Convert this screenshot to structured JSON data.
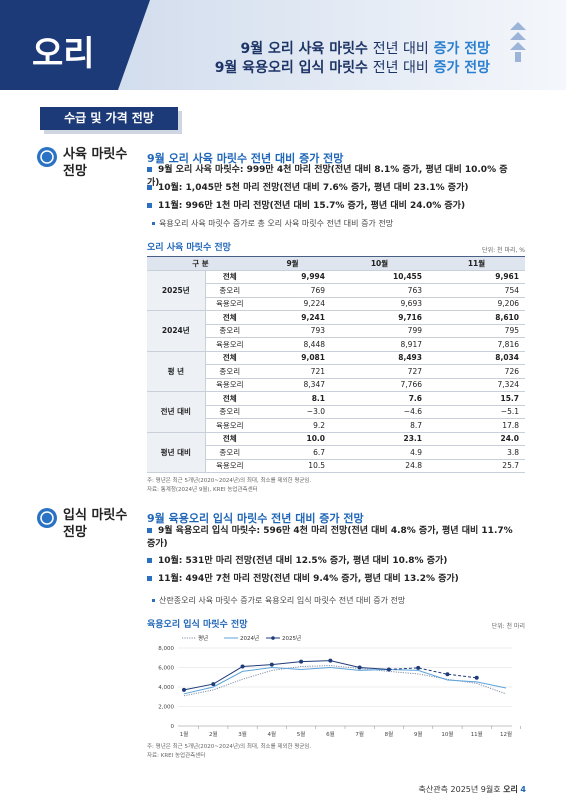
{
  "header": {
    "title": "오리",
    "lines": [
      {
        "main": "9월 오리 사육 마릿수",
        "mid": "전년 대비",
        "highlight": "증가 전망"
      },
      {
        "main": "9월 육용오리 입식 마릿수",
        "mid": "전년 대비",
        "highlight": "증가 전망"
      }
    ]
  },
  "section_title": "수급 및 가격 전망",
  "section1": {
    "label": [
      "사육 마릿수",
      "전망"
    ],
    "heading": "9월 오리 사육 마릿수 전년 대비 증가 전망",
    "bullets": [
      "9월 오리 사육 마릿수: 999만 4천 마리 전망(전년 대비 8.1% 증가, 평년 대비 10.0% 증가)",
      "10월: 1,045만 5천 마리 전망(전년 대비 7.6% 증가, 평년 대비 23.1% 증가)",
      "11월: 996만 1천 마리 전망(전년 대비 15.7% 증가, 평년 대비 24.0% 증가)"
    ],
    "sub": "육용오리 사육 마릿수 증가로 총 오리 사육 마릿수 전년 대비 증가 전망"
  },
  "table": {
    "title": "오리 사육 마릿수 전망",
    "unit": "단위: 천 마리, %",
    "header": [
      "구 분",
      "9월",
      "10월",
      "11월"
    ],
    "groups": [
      {
        "label": "2025년",
        "rows": [
          [
            "전체",
            "9,994",
            "10,455",
            "9,961"
          ],
          [
            "종오리",
            "769",
            "763",
            "754"
          ],
          [
            "육용오리",
            "9,224",
            "9,693",
            "9,206"
          ]
        ]
      },
      {
        "label": "2024년",
        "rows": [
          [
            "전체",
            "9,241",
            "9,716",
            "8,610"
          ],
          [
            "종오리",
            "793",
            "799",
            "795"
          ],
          [
            "육용오리",
            "8,448",
            "8,917",
            "7,816"
          ]
        ]
      },
      {
        "label": "평 년",
        "rows": [
          [
            "전체",
            "9,081",
            "8,493",
            "8,034"
          ],
          [
            "종오리",
            "721",
            "727",
            "726"
          ],
          [
            "육용오리",
            "8,347",
            "7,766",
            "7,324"
          ]
        ]
      },
      {
        "label": "전년 대비",
        "rows": [
          [
            "전체",
            "8.1",
            "7.6",
            "15.7"
          ],
          [
            "종오리",
            "−3.0",
            "−4.6",
            "−5.1"
          ],
          [
            "육용오리",
            "9.2",
            "8.7",
            "17.8"
          ]
        ]
      },
      {
        "label": "평년 대비",
        "rows": [
          [
            "전체",
            "10.0",
            "23.1",
            "24.0"
          ],
          [
            "종오리",
            "6.7",
            "4.9",
            "3.8"
          ],
          [
            "육용오리",
            "10.5",
            "24.8",
            "25.7"
          ]
        ]
      }
    ],
    "notes": [
      "주: 평년은 최근 5개년(2020~2024년)의 최대, 최소를 제외한 평균임.",
      "자료: 통계청(2024년 9월), KREI 농업관측센터"
    ]
  },
  "section2": {
    "label": [
      "입식 마릿수",
      "전망"
    ],
    "heading": "9월 육용오리 입식 마릿수 전년 대비 증가 전망",
    "bullets": [
      "9월 육용오리 입식 마릿수: 596만 4천 마리 전망(전년 대비 4.8% 증가, 평년 대비 11.7% 증가)",
      "10월: 531만 마리 전망(전년 대비 12.5% 증가, 평년 대비 10.8% 증가)",
      "11월: 494만 7천 마리 전망(전년 대비 9.4% 증가, 평년 대비 13.2% 증가)"
    ],
    "sub": "산란종오리 사육 마릿수 증가로 육용오리 입식 마릿수 전년 대비 증가 전망"
  },
  "chart": {
    "type": "line",
    "title": "육용오리 입식 마릿수 전망",
    "unit": "단위: 천 마리",
    "categories": [
      "1월",
      "2월",
      "3월",
      "4월",
      "5월",
      "6월",
      "7월",
      "8월",
      "9월",
      "10월",
      "11월",
      "12월"
    ],
    "ylim": [
      0,
      8000
    ],
    "yticks": [
      {
        "value": 0,
        "label": "0"
      },
      {
        "value": 2000,
        "label": "2,000"
      },
      {
        "value": 4000,
        "label": "4,000"
      },
      {
        "value": 6000,
        "label": "6,000"
      },
      {
        "value": 8000,
        "label": "8,000"
      }
    ],
    "series": [
      {
        "name": "평년",
        "color": "#7f8fa8",
        "style": "dotted",
        "values": [
          3100,
          3700,
          4800,
          5700,
          6100,
          6200,
          5900,
          5600,
          5340,
          4790,
          4370,
          3300
        ]
      },
      {
        "name": "2024년",
        "color": "#5ba3dc",
        "style": "solid",
        "values": [
          3300,
          4000,
          5600,
          6000,
          5800,
          6000,
          5700,
          5800,
          5700,
          4720,
          4520,
          3900
        ]
      },
      {
        "name": "2025년",
        "color": "#1f3c7a",
        "style": "solid",
        "markers": true,
        "dashed_from_index": 7,
        "values": [
          3700,
          4300,
          6100,
          6300,
          6600,
          6700,
          6000,
          5800,
          5960,
          5310,
          4947,
          null
        ]
      }
    ],
    "notes": [
      "주: 평년은 최근 5개년(2020~2024년)의 최대, 최소를 제외한 평균임.",
      "자료: KREI 농업관측센터"
    ]
  },
  "footer": {
    "publication": "축산관측 2025년 9월호",
    "topic": "오리",
    "page": "4"
  }
}
